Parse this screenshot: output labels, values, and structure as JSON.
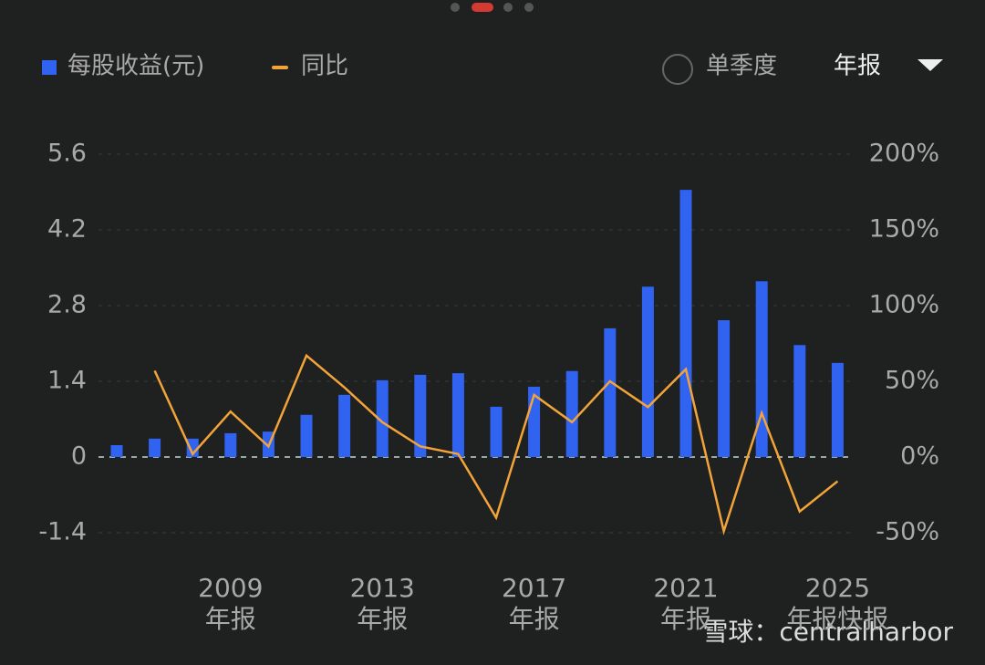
{
  "chart_data": {
    "type": "combo",
    "legend": [
      {
        "name": "每股收益(元)",
        "color": "#2f63f0"
      },
      {
        "name": "同比",
        "color": "#f2a43a"
      }
    ],
    "toggle": {
      "option": "单季度",
      "selected": "年报"
    },
    "watermark": "雪球：centralharbor",
    "categories": [
      null,
      null,
      null,
      {
        "year": "2009",
        "period": "年报"
      },
      null,
      null,
      null,
      {
        "year": "2013",
        "period": "年报"
      },
      null,
      null,
      null,
      {
        "year": "2017",
        "period": "年报"
      },
      null,
      null,
      null,
      {
        "year": "2021",
        "period": "年报"
      },
      null,
      null,
      null,
      {
        "year": "2025",
        "period": "年报快报"
      }
    ],
    "series": [
      {
        "name": "每股收益(元)",
        "type": "bar",
        "axis": "y",
        "color": "#2f63f0",
        "values": [
          0.22,
          0.34,
          0.34,
          0.44,
          0.47,
          0.78,
          1.15,
          1.42,
          1.52,
          1.55,
          0.93,
          1.3,
          1.59,
          2.38,
          3.15,
          4.94,
          2.53,
          3.25,
          2.07,
          1.74
        ]
      },
      {
        "name": "同比",
        "type": "line",
        "axis": "y2",
        "color": "#f2a43a",
        "values": [
          null,
          57,
          2,
          30,
          7,
          67,
          46,
          23,
          7,
          2,
          -40,
          41,
          23,
          50,
          33,
          58,
          -49,
          29,
          -36,
          -16
        ]
      }
    ],
    "ylim": [
      -1.4,
      5.6
    ],
    "yticks": [
      -1.4,
      0,
      1.4,
      2.8,
      4.2,
      5.6
    ],
    "y2lim": [
      -50,
      200
    ],
    "y2ticks": [
      {
        "value": -50,
        "label": "-50%"
      },
      {
        "value": 0,
        "label": "0%"
      },
      {
        "value": 50,
        "label": "50%"
      },
      {
        "value": 100,
        "label": "100%"
      },
      {
        "value": 150,
        "label": "150%"
      },
      {
        "value": 200,
        "label": "200%"
      }
    ],
    "grid": true
  }
}
